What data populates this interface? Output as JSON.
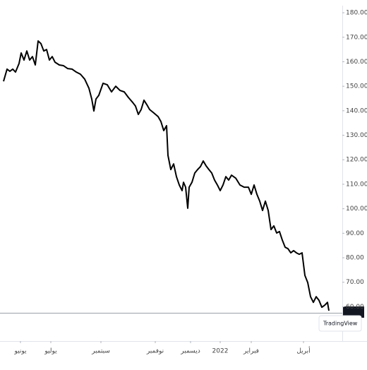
{
  "chart_data": {
    "type": "line",
    "x": [
      0,
      2.5,
      4.5,
      6.5,
      8.5,
      11,
      12.5,
      14.5,
      16.5,
      18.5,
      20.5,
      22.5,
      24.5,
      26.5,
      28.5,
      30.5,
      32.5,
      34.5,
      36.5,
      39.5,
      42.5,
      45.5,
      48.5,
      51.5,
      54.5,
      57.5,
      60.5,
      62.5,
      64,
      65.5,
      67.5,
      70.5,
      73.5,
      76.5,
      79.5,
      82.5,
      85.5,
      88.5,
      91.5,
      93.5,
      95.5,
      97.5,
      99.5,
      101.5,
      103.5,
      106.5,
      109.5,
      111.5,
      113.5,
      115.5,
      116.5,
      118.5,
      120.5,
      122.5,
      124.5,
      126.5,
      127.5,
      129,
      130.5,
      131.5,
      133.5,
      135.5,
      137.5,
      139.5,
      141.5,
      143.5,
      145.5,
      147.5,
      149.5,
      151.5,
      153.5,
      155.5,
      157.5,
      159.5,
      161.5,
      164.5,
      167.5,
      170.5,
      173.5,
      175.5,
      177.5,
      179.5,
      181.5,
      183.5,
      185.5,
      187.5,
      189.5,
      191.5,
      193.5,
      195.5,
      197.5,
      199.5,
      201.5,
      203.5,
      205.5,
      207.5,
      209.5,
      211.5,
      213.5,
      215.5,
      217.5,
      219.5,
      221.5,
      223.5,
      225.5,
      227.5,
      229.5,
      230.5
    ],
    "series": [
      {
        "color": "#000000",
        "values": [
          152,
          157,
          156.1,
          157,
          155.8,
          159.3,
          163.6,
          160.7,
          164.4,
          160.7,
          162.1,
          158.7,
          168.5,
          167.4,
          164.4,
          165,
          160.7,
          162.1,
          159.8,
          158.7,
          158.4,
          157.2,
          157,
          155.8,
          154.9,
          152.9,
          149.2,
          144.8,
          139.9,
          144.8,
          146.3,
          151.2,
          150.6,
          147.7,
          150,
          148.3,
          147.7,
          145.4,
          143.4,
          141.9,
          138.5,
          140.5,
          144.3,
          142.5,
          140.5,
          139.1,
          137.6,
          135.6,
          131.9,
          133.9,
          121.8,
          116,
          118.3,
          113.1,
          109.7,
          107.4,
          110.8,
          108.8,
          100.2,
          108.8,
          110.8,
          114.6,
          116,
          117.2,
          119.5,
          117.5,
          116,
          114.6,
          111.7,
          109.7,
          107.4,
          109.7,
          113.1,
          111.7,
          113.7,
          112.5,
          109.7,
          108.8,
          108.8,
          105.9,
          109.7,
          105.9,
          103.1,
          99.3,
          103.1,
          99.3,
          91.5,
          93,
          90.1,
          90.7,
          87.2,
          84.3,
          83.7,
          82,
          82.9,
          82,
          81.4,
          82,
          72.8,
          69.9,
          64.1,
          61.8,
          64.1,
          62.6,
          59.8,
          60.6,
          61.8,
          58.4
        ]
      }
    ],
    "xlim": [
      -2.5,
      240
    ],
    "xticks": [
      {
        "value": 12,
        "label": "يونيو"
      },
      {
        "value": 33.5,
        "label": "يوليو"
      },
      {
        "value": 69,
        "label": "سبتمبر"
      },
      {
        "value": 107.5,
        "label": "نوفمبر"
      },
      {
        "value": 132.5,
        "label": "ديسمبر"
      },
      {
        "value": 153.5,
        "label": "2022"
      },
      {
        "value": 175.5,
        "label": "فبراير"
      },
      {
        "value": 212.5,
        "label": "أبريل"
      }
    ],
    "ylim": [
      46,
      182.9
    ],
    "yticks": [
      {
        "value": 60,
        "label": "60.00"
      },
      {
        "value": 70,
        "label": "70.00"
      },
      {
        "value": 80,
        "label": "80.00"
      },
      {
        "value": 90,
        "label": "90.00"
      },
      {
        "value": 100,
        "label": "100.00"
      },
      {
        "value": 110,
        "label": "110.00"
      },
      {
        "value": 120,
        "label": "120.00"
      },
      {
        "value": 130,
        "label": "130.00"
      },
      {
        "value": 140,
        "label": "140.00"
      },
      {
        "value": 150,
        "label": "150.00"
      },
      {
        "value": 160,
        "label": "160.00"
      },
      {
        "value": 170,
        "label": "170.00"
      },
      {
        "value": 180,
        "label": "180.00"
      }
    ],
    "grid": false,
    "branding": "TradingView"
  }
}
